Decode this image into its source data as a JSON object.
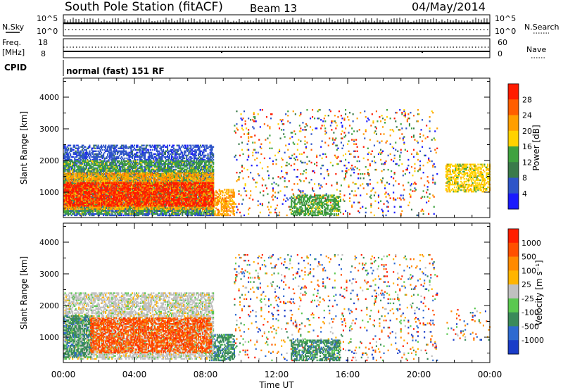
{
  "header": {
    "station": "South Pole Station (fitACF)",
    "beam": "Beam 13",
    "date": "04/May/2014"
  },
  "status_panels": {
    "nsky": {
      "label": "N.Sky",
      "ticks": [
        "10^5",
        "10^0"
      ]
    },
    "nsearch": {
      "label": "N.Search",
      "ticks": [
        "10^5",
        "10^0"
      ]
    },
    "freq": {
      "label_line1": "Freq.",
      "label_line2": "[MHz]",
      "ticks": [
        "18",
        "8"
      ]
    },
    "nave": {
      "label": "Nave",
      "ticks": [
        "60",
        "0"
      ]
    },
    "cpid": {
      "label": "CPID",
      "text": "normal (fast) 151 RF"
    }
  },
  "chart_data": [
    {
      "type": "heatmap",
      "name": "power",
      "ylabel": "Slant Range [km]",
      "ylim": [
        200,
        4600
      ],
      "yticks": [
        "1000",
        "2000",
        "3000",
        "4000"
      ],
      "xlabel": "Time UT",
      "xticks": [
        "00:00",
        "04:00",
        "08:00",
        "12:00",
        "16:00",
        "20:00",
        "00:00"
      ],
      "colorbar": {
        "label": "Power [dB]",
        "ticks": [
          "4",
          "8",
          "12",
          "16",
          "20",
          "24",
          "28"
        ],
        "colors": [
          "#1a1aff",
          "#2e55c8",
          "#3a7a4a",
          "#3fa23f",
          "#ffd200",
          "#ff9e00",
          "#ff5e00",
          "#ff1b00"
        ]
      },
      "regions": [
        {
          "t0": 0.0,
          "t1": 8.4,
          "r0": 550,
          "r1": 1300,
          "level": 7
        },
        {
          "t0": 0.0,
          "t1": 8.4,
          "r0": 450,
          "r1": 1600,
          "level": 5
        },
        {
          "t0": 0.0,
          "t1": 8.4,
          "r0": 300,
          "r1": 2000,
          "level": 3
        },
        {
          "t0": 0.0,
          "t1": 8.4,
          "r0": 250,
          "r1": 2500,
          "level": 1
        },
        {
          "t0": 8.2,
          "t1": 9.6,
          "r0": 250,
          "r1": 1100,
          "level": 5
        },
        {
          "t0": 21.5,
          "t1": 24.0,
          "r0": 1000,
          "r1": 1900,
          "level": 4
        },
        {
          "t0": 12.8,
          "t1": 15.6,
          "r0": 250,
          "r1": 900,
          "level": 3
        },
        {
          "t0": 9.6,
          "t1": 21.0,
          "r0": 250,
          "r1": 3600,
          "level": 0
        }
      ]
    },
    {
      "type": "heatmap",
      "name": "velocity",
      "ylabel": "Slant Range [km]",
      "ylim": [
        200,
        4600
      ],
      "yticks": [
        "1000",
        "2000",
        "3000",
        "4000"
      ],
      "xlabel": "Time UT",
      "xticks": [
        "00:00",
        "04:00",
        "08:00",
        "12:00",
        "16:00",
        "20:00",
        "00:00"
      ],
      "colorbar": {
        "label": "Velocity [m s⁻¹]",
        "ticks": [
          "1000",
          "500",
          "100",
          "25",
          "-25",
          "-100",
          "-500",
          "-1000"
        ],
        "colors": [
          "#1a3cc8",
          "#2e6ad0",
          "#3a8a5a",
          "#5ac850",
          "#c0c0c0",
          "#ffb400",
          "#ff8a00",
          "#ff5000",
          "#ff1e00"
        ]
      },
      "regions": [
        {
          "t0": 1.5,
          "t1": 8.3,
          "r0": 500,
          "r1": 1600,
          "level": 7
        },
        {
          "t0": 0.0,
          "t1": 1.6,
          "r0": 350,
          "r1": 1700,
          "level": 2
        },
        {
          "t0": 0.0,
          "t1": 8.4,
          "r0": 300,
          "r1": 2400,
          "level": 4
        },
        {
          "t0": 8.2,
          "t1": 9.6,
          "r0": 250,
          "r1": 1100,
          "level": 2
        },
        {
          "t0": 21.5,
          "t1": 24.0,
          "r0": 900,
          "r1": 2000,
          "level": 7
        },
        {
          "t0": 12.8,
          "t1": 15.6,
          "r0": 250,
          "r1": 900,
          "level": 2
        },
        {
          "t0": 9.6,
          "t1": 21.0,
          "r0": 250,
          "r1": 3600,
          "level": 6
        }
      ]
    }
  ]
}
